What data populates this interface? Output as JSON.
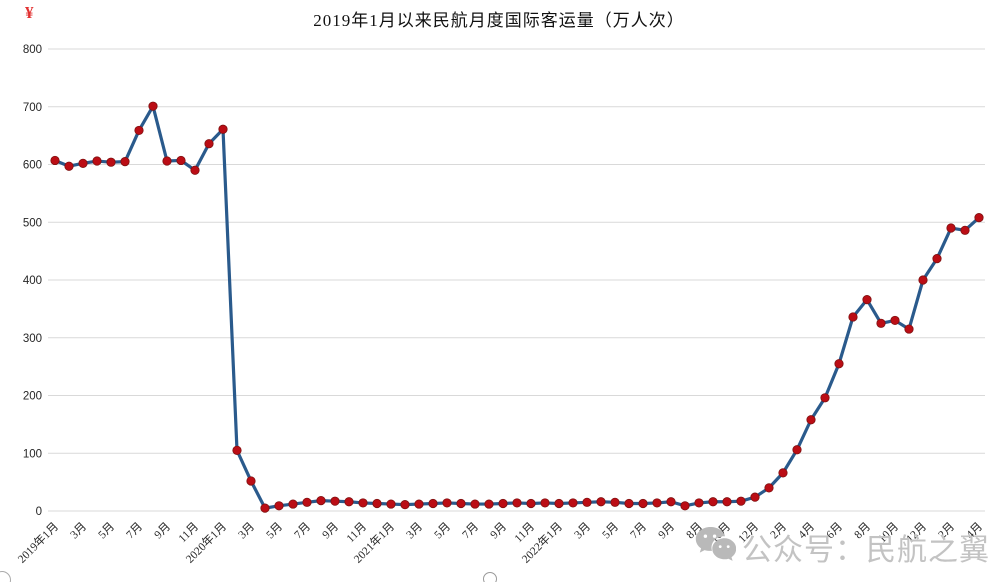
{
  "title": "2019年1月以来民航月度国际客运量（万人次）",
  "top_left_mark": "¥",
  "watermark": {
    "icon": "wechat-icon",
    "text": "公众号：民航之翼",
    "color": "#c3c3c3"
  },
  "chart_data": {
    "type": "line",
    "title": "2019年1月以来民航月度国际客运量（万人次）",
    "xlabel": "",
    "ylabel": "",
    "ylim": [
      0,
      800
    ],
    "y_ticks": [
      0,
      100,
      200,
      300,
      400,
      500,
      600,
      700,
      800
    ],
    "grid": "horizontal",
    "legend": "none",
    "line_color": "#2a5a8c",
    "marker_color": "#bb0d15",
    "marker_edge_color": "#7f1010",
    "grid_color": "#d9d9d9",
    "axis_text_color": "#262626",
    "x_tick_labels_every_2": [
      "2019年1月",
      "3月",
      "5月",
      "7月",
      "9月",
      "11月",
      "2020年1月",
      "3月",
      "5月",
      "7月",
      "9月",
      "11月",
      "2021年1月",
      "3月",
      "5月",
      "7月",
      "9月",
      "11月",
      "2022年1月",
      "3月",
      "5月",
      "7月",
      "9月",
      "8月",
      "10月",
      "12月",
      "2月",
      "4月",
      "6月",
      "8月",
      "10月",
      "12月",
      "2月",
      "4月"
    ],
    "values": [
      607,
      597,
      602,
      606,
      604,
      605,
      659,
      701,
      606,
      607,
      590,
      636,
      661,
      105,
      52,
      5,
      9,
      12,
      15,
      18,
      17,
      16,
      14,
      13,
      12,
      11,
      12,
      13,
      14,
      13,
      12,
      12,
      13,
      14,
      13,
      14,
      13,
      14,
      15,
      16,
      15,
      13,
      13,
      14,
      16,
      9,
      14,
      16,
      16,
      17,
      24,
      40,
      66,
      106,
      158,
      196,
      255,
      336,
      366,
      325,
      330,
      315,
      400,
      437,
      490,
      486,
      508
    ]
  }
}
